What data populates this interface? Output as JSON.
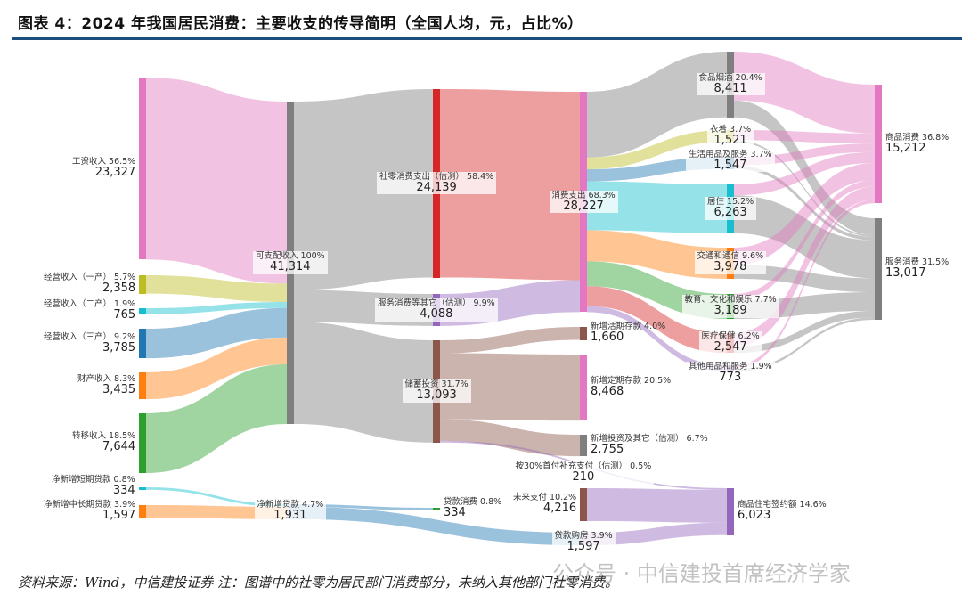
{
  "title": "图表 4：2024 年我国居民消费：主要收支的传导简明（全国人均，元，占比%）",
  "footnote": "资料来源：Wind，中信建投证券 注：图谱中的社零为居民部门消费部分，未纳入其他部门社零消费。",
  "watermark": "公众号 · 中信建投首席经济学家",
  "chart_data": {
    "type": "sankey",
    "title": "2024 年我国居民消费：主要收支的传导简明（全国人均，元，占比%）",
    "unit": "元",
    "nodes": [
      {
        "id": "wage",
        "name": "工资收入",
        "pct": "56.5%",
        "value": 23327,
        "color": "#e377c2"
      },
      {
        "id": "biz1",
        "name": "经营收入（一产）",
        "pct": "5.7%",
        "value": 2358,
        "color": "#bcbd22"
      },
      {
        "id": "biz2",
        "name": "经营收入（二产）",
        "pct": "1.9%",
        "value": 765,
        "color": "#17becf"
      },
      {
        "id": "biz3",
        "name": "经营收入（三产）",
        "pct": "9.2%",
        "value": 3785,
        "color": "#1f77b4"
      },
      {
        "id": "prop",
        "name": "财产收入",
        "pct": "8.3%",
        "value": 3435,
        "color": "#ff7f0e"
      },
      {
        "id": "trans",
        "name": "转移收入",
        "pct": "18.5%",
        "value": 7644,
        "color": "#2ca02c"
      },
      {
        "id": "sloan",
        "name": "净新增短期贷款",
        "pct": "0.8%",
        "value": 334,
        "color": "#17becf"
      },
      {
        "id": "lloan",
        "name": "净新增中长期贷款",
        "pct": "3.9%",
        "value": 1597,
        "color": "#ff7f0e"
      },
      {
        "id": "disp",
        "name": "可支配收入",
        "pct": "100%",
        "value": 41314,
        "color": "#7f7f7f"
      },
      {
        "id": "netloan",
        "name": "净新增贷款",
        "pct": "4.7%",
        "value": 1931,
        "color": "#aec7e8"
      },
      {
        "id": "retail",
        "name": "社零消费支出（估测）",
        "pct": "58.4%",
        "value": 24139,
        "color": "#d62728"
      },
      {
        "id": "svc",
        "name": "服务消费等其它（估测）",
        "pct": "9.9%",
        "value": 4088,
        "color": "#9467bd"
      },
      {
        "id": "save",
        "name": "储蓄投资",
        "pct": "31.7%",
        "value": 13093,
        "color": "#8c564b"
      },
      {
        "id": "loancons",
        "name": "贷款消费",
        "pct": "0.8%",
        "value": 334,
        "color": "#2ca02c"
      },
      {
        "id": "cons",
        "name": "消费支出",
        "pct": "68.3%",
        "value": 28227,
        "color": "#e377c2"
      },
      {
        "id": "demand",
        "name": "新增活期存款",
        "pct": "4.0%",
        "value": 1660,
        "color": "#8c564b"
      },
      {
        "id": "time",
        "name": "新增定期存款",
        "pct": "20.5%",
        "value": 8468,
        "color": "#e377c2"
      },
      {
        "id": "invest",
        "name": "新增投资及其它（估测）",
        "pct": "6.7%",
        "value": 2755,
        "color": "#7f7f7f"
      },
      {
        "id": "down",
        "name": "按30%首付补充支付（估测）",
        "pct": "0.5%",
        "value": 210,
        "color": "#c5b0d5"
      },
      {
        "id": "future",
        "name": "未来支付",
        "pct": "10.2%",
        "value": 4216,
        "color": "#8c564b"
      },
      {
        "id": "mort",
        "name": "贷款购房",
        "pct": "3.9%",
        "value": 1597,
        "color": "#c5b0d5"
      },
      {
        "id": "food",
        "name": "食品烟酒",
        "pct": "20.4%",
        "value": 8411,
        "color": "#7f7f7f"
      },
      {
        "id": "cloth",
        "name": "衣着",
        "pct": "3.7%",
        "value": 1521,
        "color": "#bcbd22"
      },
      {
        "id": "daily",
        "name": "生活用品及服务",
        "pct": "3.7%",
        "value": 1547,
        "color": "#1f77b4"
      },
      {
        "id": "house",
        "name": "居住",
        "pct": "15.2%",
        "value": 6263,
        "color": "#17becf"
      },
      {
        "id": "traffic",
        "name": "交通和通信",
        "pct": "9.6%",
        "value": 3978,
        "color": "#ff7f0e"
      },
      {
        "id": "edu",
        "name": "教育、文化和娱乐",
        "pct": "7.7%",
        "value": 3189,
        "color": "#2ca02c"
      },
      {
        "id": "med",
        "name": "医疗保健",
        "pct": "6.2%",
        "value": 2547,
        "color": "#d62728"
      },
      {
        "id": "other",
        "name": "其他用品和服务",
        "pct": "1.9%",
        "value": 773,
        "color": "#9467bd"
      },
      {
        "id": "resi",
        "name": "商品住宅签约额",
        "pct": "14.6%",
        "value": 6023,
        "color": "#9467bd"
      },
      {
        "id": "goods",
        "name": "商品消费",
        "pct": "36.8%",
        "value": 15212,
        "color": "#e377c2"
      },
      {
        "id": "services",
        "name": "服务消费",
        "pct": "31.5%",
        "value": 13017,
        "color": "#7f7f7f"
      }
    ],
    "links": [
      {
        "source": "wage",
        "target": "disp",
        "value": 23327,
        "color": "#e377c2"
      },
      {
        "source": "biz1",
        "target": "disp",
        "value": 2358,
        "color": "#bcbd22"
      },
      {
        "source": "biz2",
        "target": "disp",
        "value": 765,
        "color": "#17becf"
      },
      {
        "source": "biz3",
        "target": "disp",
        "value": 3785,
        "color": "#1f77b4"
      },
      {
        "source": "prop",
        "target": "disp",
        "value": 3435,
        "color": "#ff7f0e"
      },
      {
        "source": "trans",
        "target": "disp",
        "value": 7644,
        "color": "#2ca02c"
      },
      {
        "source": "sloan",
        "target": "netloan",
        "value": 334,
        "color": "#17becf"
      },
      {
        "source": "lloan",
        "target": "netloan",
        "value": 1597,
        "color": "#ff7f0e"
      },
      {
        "source": "disp",
        "target": "retail",
        "value": 24139,
        "color": "#7f7f7f"
      },
      {
        "source": "disp",
        "target": "svc",
        "value": 4088,
        "color": "#7f7f7f"
      },
      {
        "source": "disp",
        "target": "save",
        "value": 13093,
        "color": "#7f7f7f"
      },
      {
        "source": "netloan",
        "target": "loancons",
        "value": 334,
        "color": "#1f77b4"
      },
      {
        "source": "netloan",
        "target": "mort",
        "value": 1597,
        "color": "#1f77b4"
      },
      {
        "source": "retail",
        "target": "cons",
        "value": 24139,
        "color": "#d62728"
      },
      {
        "source": "svc",
        "target": "cons",
        "value": 4088,
        "color": "#9467bd"
      },
      {
        "source": "save",
        "target": "demand",
        "value": 1660,
        "color": "#8c564b"
      },
      {
        "source": "save",
        "target": "time",
        "value": 8468,
        "color": "#8c564b"
      },
      {
        "source": "save",
        "target": "invest",
        "value": 2755,
        "color": "#8c564b"
      },
      {
        "source": "save",
        "target": "resi",
        "value": 210,
        "color": "#9467bd"
      },
      {
        "source": "future",
        "target": "resi",
        "value": 4216,
        "color": "#9467bd"
      },
      {
        "source": "mort",
        "target": "resi",
        "value": 1597,
        "color": "#9467bd"
      },
      {
        "source": "cons",
        "target": "food",
        "value": 8411,
        "color": "#7f7f7f"
      },
      {
        "source": "cons",
        "target": "cloth",
        "value": 1521,
        "color": "#bcbd22"
      },
      {
        "source": "cons",
        "target": "daily",
        "value": 1547,
        "color": "#1f77b4"
      },
      {
        "source": "cons",
        "target": "house",
        "value": 6263,
        "color": "#17becf"
      },
      {
        "source": "cons",
        "target": "traffic",
        "value": 3978,
        "color": "#ff7f0e"
      },
      {
        "source": "cons",
        "target": "edu",
        "value": 3189,
        "color": "#2ca02c"
      },
      {
        "source": "cons",
        "target": "med",
        "value": 2547,
        "color": "#d62728"
      },
      {
        "source": "cons",
        "target": "other",
        "value": 773,
        "color": "#9467bd"
      },
      {
        "source": "food",
        "target": "goods",
        "value": 6250,
        "color": "#e377c2"
      },
      {
        "source": "food",
        "target": "services",
        "value": 2161,
        "color": "#7f7f7f"
      },
      {
        "source": "cloth",
        "target": "goods",
        "value": 1300,
        "color": "#e377c2"
      },
      {
        "source": "cloth",
        "target": "services",
        "value": 221,
        "color": "#7f7f7f"
      },
      {
        "source": "daily",
        "target": "goods",
        "value": 1100,
        "color": "#e377c2"
      },
      {
        "source": "daily",
        "target": "services",
        "value": 447,
        "color": "#7f7f7f"
      },
      {
        "source": "house",
        "target": "goods",
        "value": 1400,
        "color": "#e377c2"
      },
      {
        "source": "house",
        "target": "services",
        "value": 4863,
        "color": "#7f7f7f"
      },
      {
        "source": "traffic",
        "target": "goods",
        "value": 2200,
        "color": "#e377c2"
      },
      {
        "source": "traffic",
        "target": "services",
        "value": 1778,
        "color": "#7f7f7f"
      },
      {
        "source": "edu",
        "target": "goods",
        "value": 800,
        "color": "#e377c2"
      },
      {
        "source": "edu",
        "target": "services",
        "value": 2389,
        "color": "#7f7f7f"
      },
      {
        "source": "med",
        "target": "goods",
        "value": 1700,
        "color": "#e377c2"
      },
      {
        "source": "med",
        "target": "services",
        "value": 847,
        "color": "#7f7f7f"
      },
      {
        "source": "other",
        "target": "goods",
        "value": 462,
        "color": "#e377c2"
      },
      {
        "source": "other",
        "target": "services",
        "value": 311,
        "color": "#7f7f7f"
      }
    ]
  }
}
